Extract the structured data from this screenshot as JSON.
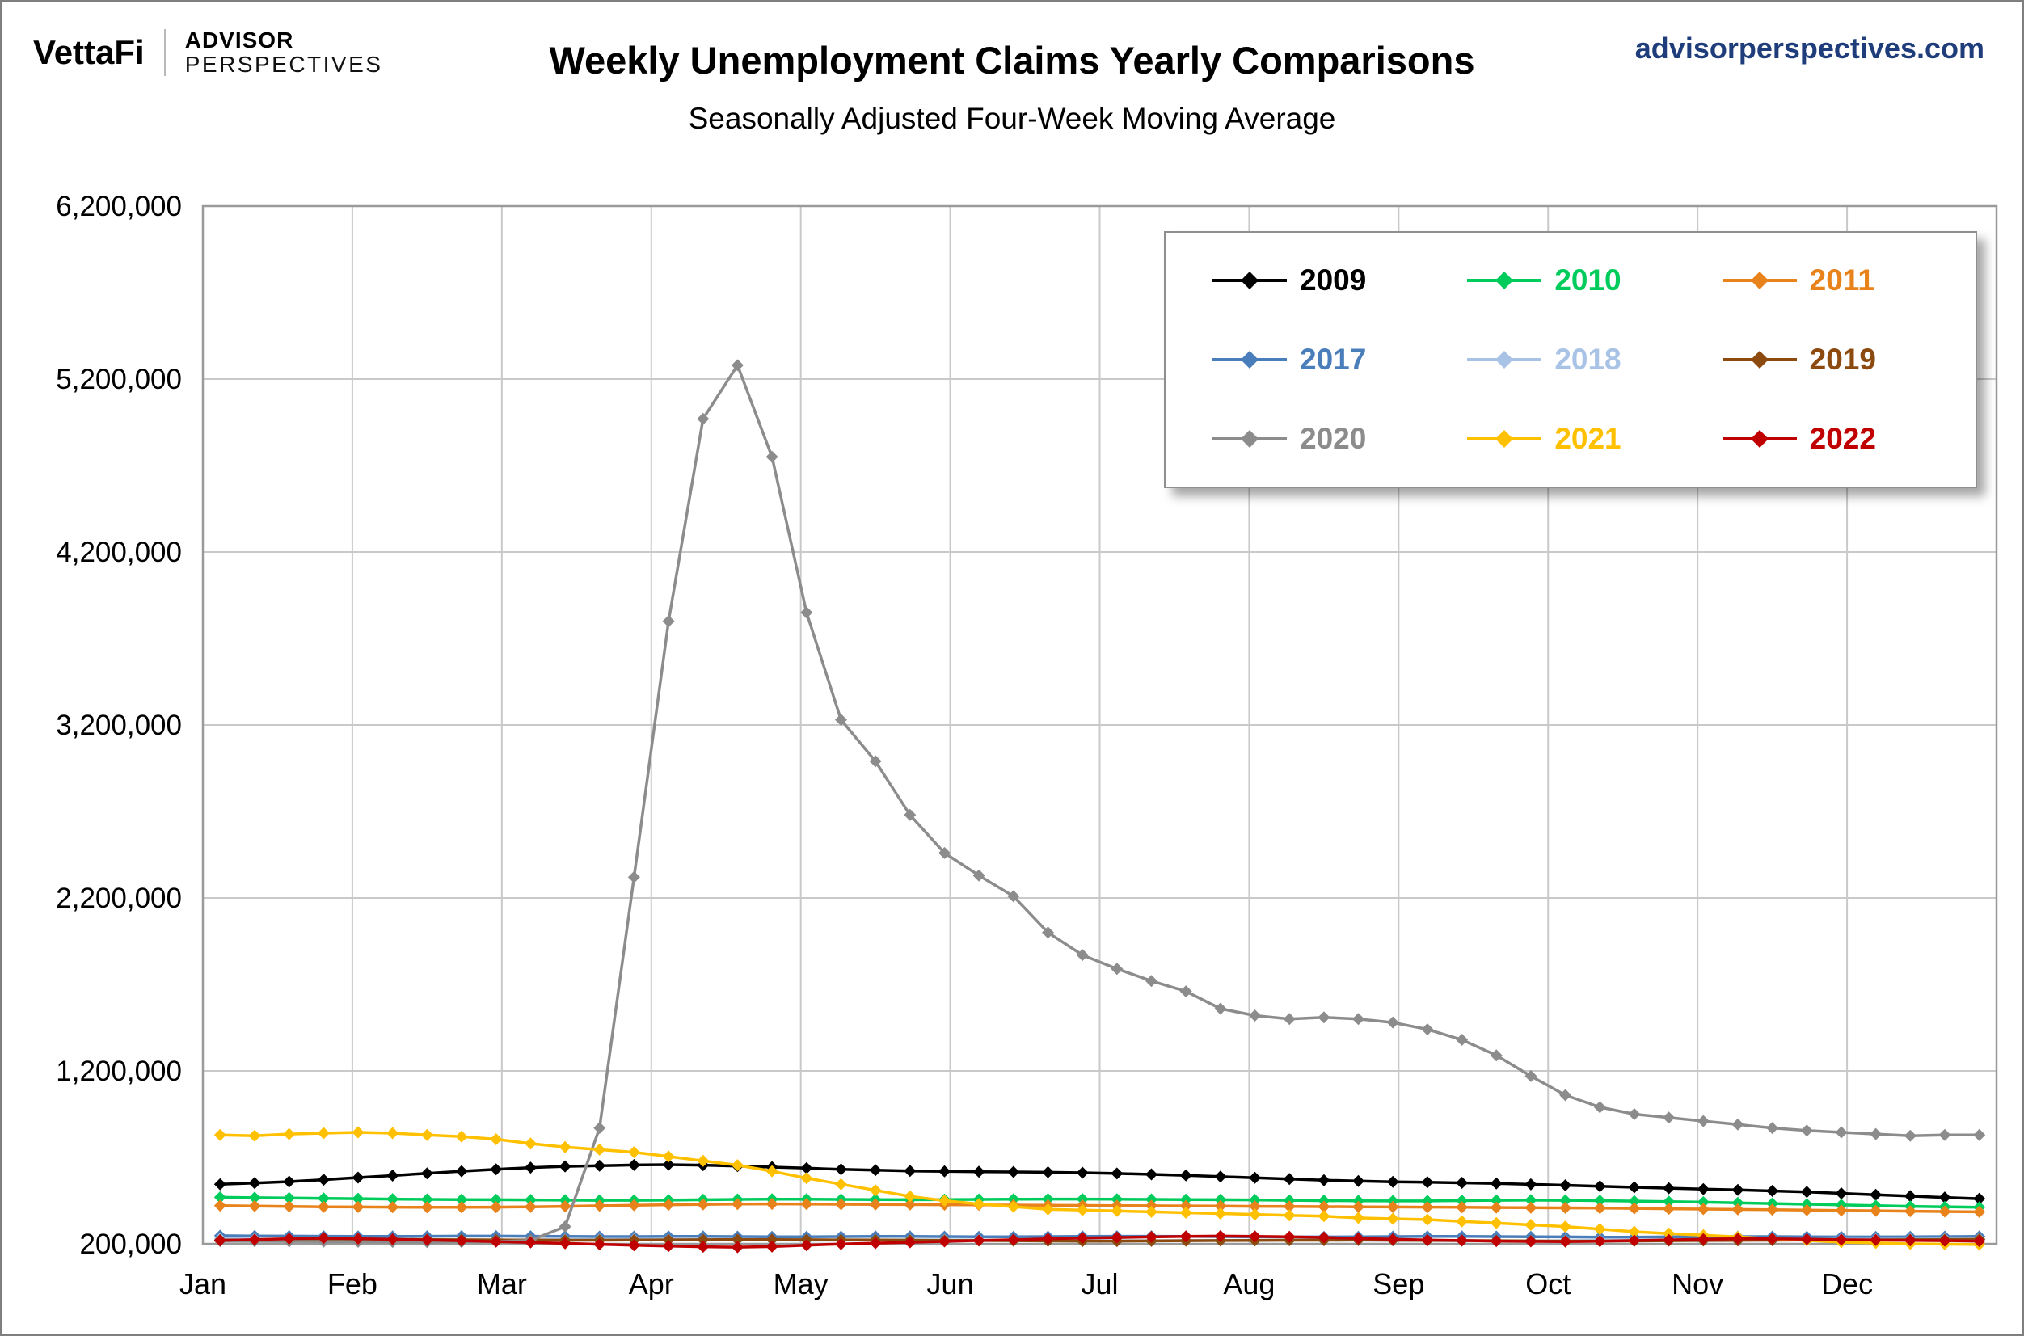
{
  "header": {
    "logo_primary": "VettaFi",
    "logo_secondary_line1": "ADVISOR",
    "logo_secondary_line2": "PERSPECTIVES",
    "title": "Weekly Unemployment Claims Yearly Comparisons",
    "subtitle": "Seasonally Adjusted Four-Week Moving Average",
    "website": "advisorperspectives.com"
  },
  "colors": {
    "website_text": "#1F3D7A",
    "grid": "#C9C9C9",
    "plot_border": "#9A9A9A",
    "outer_border": "#7F7F7F",
    "axis_text": "#000000"
  },
  "chart_data": {
    "type": "line",
    "title": "Weekly Unemployment Claims Yearly Comparisons",
    "subtitle": "Seasonally Adjusted Four-Week Moving Average",
    "x_axis": {
      "unit": "week-of-year",
      "points_per_series": 52,
      "tick_labels": [
        "Jan",
        "Feb",
        "Mar",
        "Apr",
        "May",
        "Jun",
        "Jul",
        "Aug",
        "Sep",
        "Oct",
        "Nov",
        "Dec"
      ]
    },
    "y_axis": {
      "min": 200000,
      "max": 6200000,
      "tick_interval": 1000000,
      "tick_labels": [
        "200,000",
        "1,200,000",
        "2,200,000",
        "3,200,000",
        "4,200,000",
        "5,200,000",
        "6,200,000"
      ]
    },
    "grid": true,
    "legend_position": "top-right",
    "marker": "diamond",
    "series": [
      {
        "name": "2009",
        "color": "#000000",
        "values": [
          545000,
          552000,
          560000,
          571000,
          583000,
          595000,
          608000,
          620000,
          631000,
          641000,
          648000,
          652000,
          656000,
          658000,
          655000,
          650000,
          644000,
          638000,
          631000,
          626000,
          622000,
          619000,
          617000,
          616000,
          614000,
          611000,
          607000,
          602000,
          596000,
          589000,
          582000,
          575000,
          568000,
          563000,
          559000,
          556000,
          553000,
          549000,
          544000,
          539000,
          533000,
          527000,
          522000,
          517000,
          512000,
          506000,
          500000,
          492000,
          484000,
          476000,
          468000,
          461000
        ]
      },
      {
        "name": "2010",
        "color": "#00CC5C",
        "values": [
          469000,
          467000,
          465000,
          463000,
          461000,
          459000,
          457000,
          456000,
          455000,
          454000,
          453000,
          452000,
          452000,
          453000,
          455000,
          457000,
          458000,
          458000,
          457000,
          456000,
          455000,
          456000,
          457000,
          458000,
          459000,
          459000,
          458000,
          457000,
          456000,
          455000,
          454000,
          452000,
          450000,
          449000,
          448000,
          448000,
          450000,
          452000,
          453000,
          452000,
          450000,
          447000,
          444000,
          441000,
          437000,
          433000,
          429000,
          425000,
          421000,
          417000,
          414000,
          411000
        ]
      },
      {
        "name": "2011",
        "color": "#E8821A",
        "values": [
          421000,
          418000,
          416000,
          414000,
          413000,
          412000,
          411000,
          411000,
          412000,
          414000,
          417000,
          420000,
          423000,
          426000,
          428000,
          430000,
          431000,
          430000,
          429000,
          428000,
          427000,
          426000,
          425000,
          424000,
          423000,
          422000,
          421000,
          420000,
          419000,
          418000,
          417000,
          416000,
          415000,
          414000,
          413000,
          412000,
          411000,
          410000,
          409000,
          408000,
          407000,
          405000,
          403000,
          401000,
          399000,
          397000,
          395000,
          393000,
          391000,
          389000,
          387000,
          385000
        ]
      },
      {
        "name": "2017",
        "color": "#4A7EBB",
        "values": [
          247000,
          246000,
          245000,
          244000,
          243000,
          243000,
          244000,
          245000,
          245000,
          244000,
          243000,
          242000,
          242000,
          243000,
          243000,
          242000,
          241000,
          241000,
          242000,
          243000,
          243000,
          242000,
          241000,
          241000,
          242000,
          243000,
          244000,
          244000,
          243000,
          242000,
          241000,
          240000,
          240000,
          241000,
          242000,
          243000,
          243000,
          242000,
          241000,
          240000,
          239000,
          239000,
          240000,
          241000,
          242000,
          242000,
          241000,
          240000,
          240000,
          241000,
          242000,
          243000
        ]
      },
      {
        "name": "2018",
        "color": "#A9C3E6",
        "values": [
          230000,
          228000,
          227000,
          226000,
          225000,
          224000,
          223000,
          222000,
          222000,
          223000,
          224000,
          225000,
          226000,
          225000,
          224000,
          223000,
          222000,
          221000,
          221000,
          222000,
          223000,
          223000,
          222000,
          221000,
          220000,
          219000,
          218000,
          218000,
          219000,
          220000,
          221000,
          222000,
          222000,
          221000,
          220000,
          219000,
          218000,
          217000,
          217000,
          218000,
          219000,
          220000,
          221000,
          222000,
          223000,
          224000,
          225000,
          226000,
          226000,
          227000,
          228000,
          229000
        ]
      },
      {
        "name": "2019",
        "color": "#8C4A0F",
        "values": [
          222000,
          221000,
          222000,
          224000,
          225000,
          226000,
          225000,
          224000,
          223000,
          222000,
          221000,
          221000,
          222000,
          223000,
          224000,
          225000,
          225000,
          224000,
          223000,
          222000,
          221000,
          220000,
          219000,
          218000,
          217000,
          216000,
          216000,
          217000,
          218000,
          219000,
          220000,
          221000,
          221000,
          222000,
          221000,
          220000,
          219000,
          218000,
          217000,
          216000,
          216000,
          217000,
          218000,
          219000,
          220000,
          221000,
          222000,
          223000,
          223000,
          224000,
          225000,
          226000
        ]
      },
      {
        "name": "2020",
        "color": "#8C8C8C",
        "values": [
          216000,
          215000,
          214000,
          213000,
          212000,
          211000,
          210000,
          211000,
          214000,
          220000,
          300000,
          870000,
          2320000,
          3800000,
          4970000,
          5280000,
          4750000,
          3850000,
          3230000,
          2990000,
          2680000,
          2460000,
          2330000,
          2210000,
          2000000,
          1870000,
          1790000,
          1720000,
          1660000,
          1560000,
          1520000,
          1500000,
          1510000,
          1500000,
          1480000,
          1440000,
          1380000,
          1290000,
          1170000,
          1060000,
          990000,
          950000,
          930000,
          910000,
          890000,
          870000,
          855000,
          845000,
          835000,
          825000,
          830000,
          830000
        ]
      },
      {
        "name": "2021",
        "color": "#FFC000",
        "values": [
          830000,
          825000,
          835000,
          840000,
          845000,
          840000,
          830000,
          820000,
          805000,
          780000,
          760000,
          745000,
          730000,
          705000,
          680000,
          655000,
          620000,
          580000,
          545000,
          510000,
          475000,
          450000,
          430000,
          415000,
          400000,
          395000,
          390000,
          385000,
          380000,
          375000,
          370000,
          365000,
          360000,
          350000,
          345000,
          340000,
          330000,
          320000,
          310000,
          300000,
          285000,
          270000,
          260000,
          250000,
          240000,
          230000,
          220000,
          210000,
          205000,
          200000,
          198000,
          196000
        ]
      },
      {
        "name": "2022",
        "color": "#C00000",
        "values": [
          220000,
          225000,
          230000,
          233000,
          230000,
          226000,
          222000,
          218000,
          213000,
          208000,
          203000,
          197000,
          192000,
          187000,
          183000,
          181000,
          184000,
          192000,
          199000,
          204000,
          209000,
          214000,
          219000,
          224000,
          229000,
          234000,
          237000,
          240000,
          243000,
          245000,
          243000,
          241000,
          237000,
          232000,
          227000,
          222000,
          219000,
          216000,
          214000,
          213000,
          215000,
          219000,
          223000,
          227000,
          230000,
          229000,
          227000,
          224000,
          222000,
          220000,
          218000,
          216000
        ]
      }
    ],
    "legend_rows": [
      [
        "2009",
        "2010",
        "2011"
      ],
      [
        "2017",
        "2018",
        "2019"
      ],
      [
        "2020",
        "2021",
        "2022"
      ]
    ]
  }
}
